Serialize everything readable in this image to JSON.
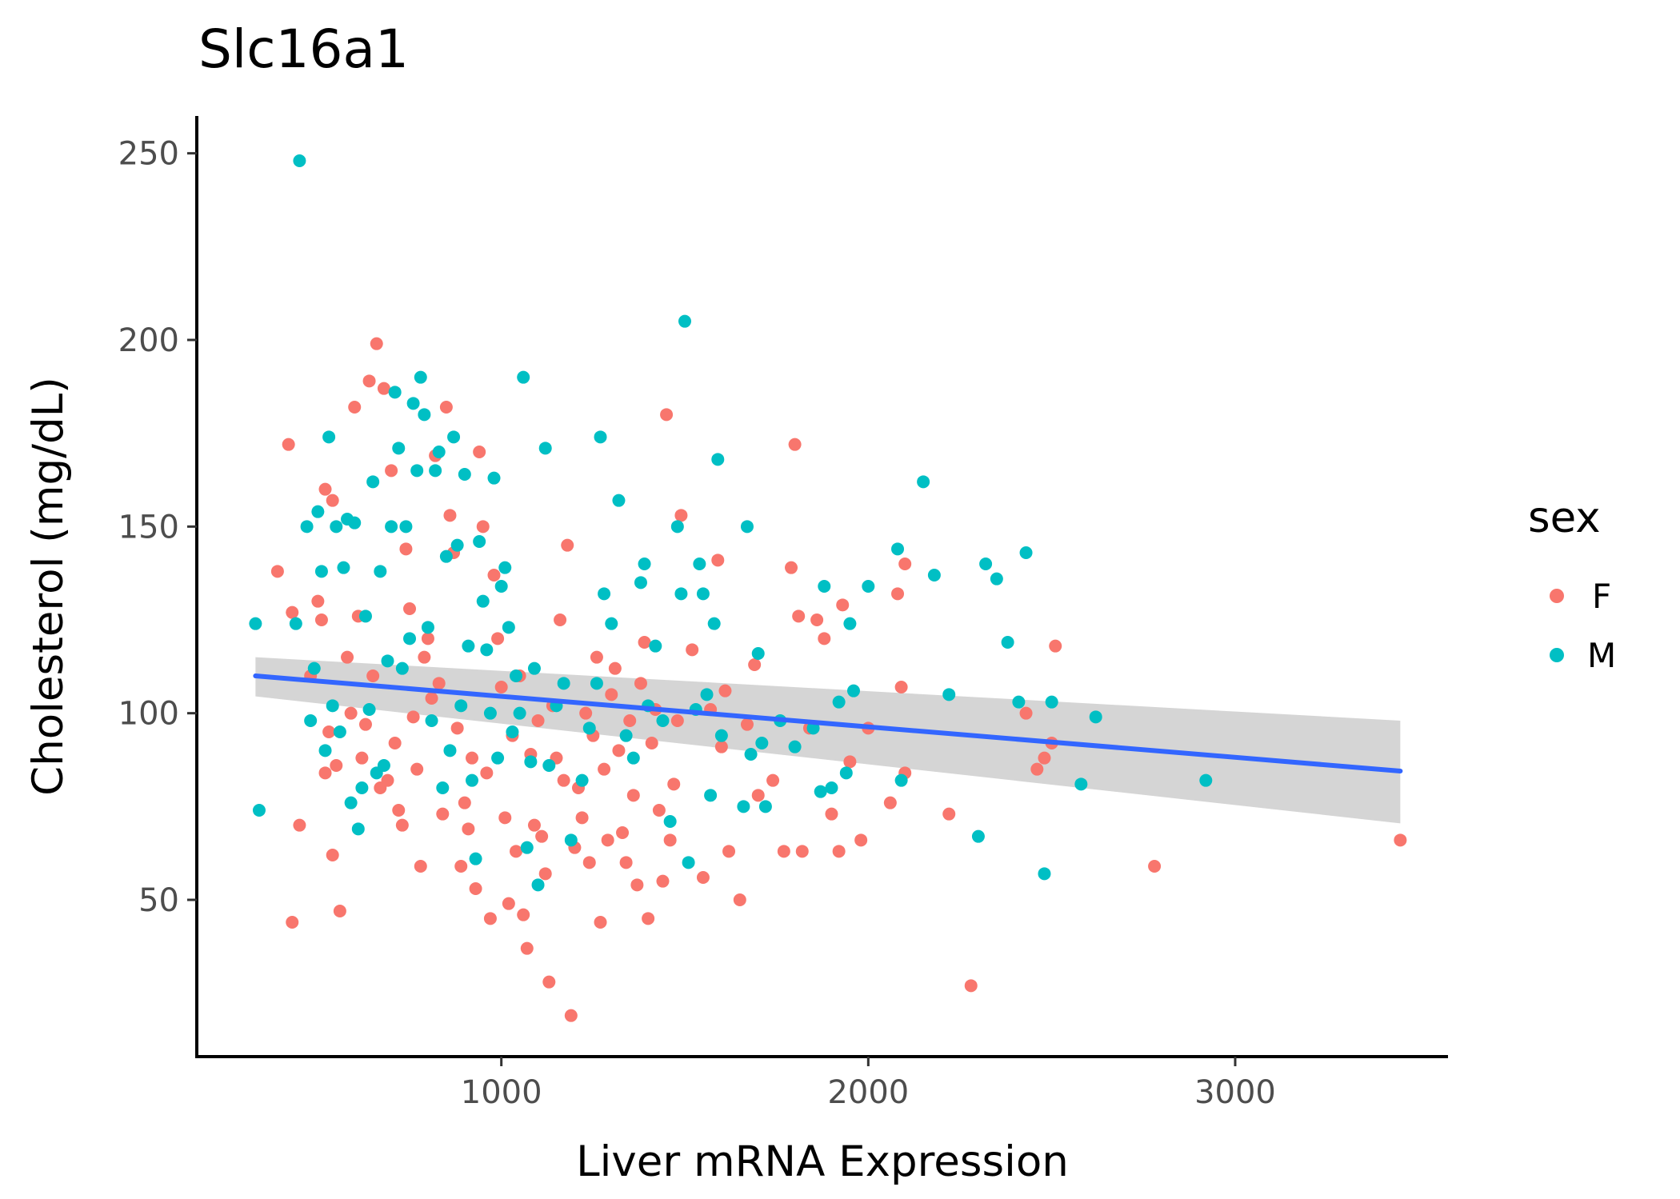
{
  "chart_data": {
    "type": "scatter",
    "title": "Slc16a1",
    "xlabel": "Liver mRNA Expression",
    "ylabel": "Cholesterol (mg/dL)",
    "xlim": [
      170,
      3580
    ],
    "ylim": [
      8,
      260
    ],
    "x_ticks": [
      1000,
      2000,
      3000
    ],
    "y_ticks": [
      50,
      100,
      150,
      200,
      250
    ],
    "grid": false,
    "legend": {
      "title": "sex",
      "position": "right"
    },
    "series": [
      {
        "name": "F",
        "color": "#F8766D",
        "points": [
          [
            420,
            172
          ],
          [
            390,
            138
          ],
          [
            430,
            127
          ],
          [
            430,
            44
          ],
          [
            450,
            70
          ],
          [
            480,
            110
          ],
          [
            500,
            130
          ],
          [
            510,
            125
          ],
          [
            520,
            160
          ],
          [
            530,
            95
          ],
          [
            520,
            84
          ],
          [
            540,
            157
          ],
          [
            550,
            86
          ],
          [
            540,
            62
          ],
          [
            560,
            47
          ],
          [
            580,
            115
          ],
          [
            590,
            100
          ],
          [
            600,
            182
          ],
          [
            610,
            126
          ],
          [
            620,
            88
          ],
          [
            630,
            97
          ],
          [
            640,
            189
          ],
          [
            650,
            110
          ],
          [
            660,
            199
          ],
          [
            670,
            80
          ],
          [
            680,
            187
          ],
          [
            690,
            82
          ],
          [
            700,
            165
          ],
          [
            710,
            92
          ],
          [
            720,
            74
          ],
          [
            730,
            70
          ],
          [
            740,
            144
          ],
          [
            750,
            128
          ],
          [
            760,
            99
          ],
          [
            770,
            85
          ],
          [
            780,
            59
          ],
          [
            790,
            115
          ],
          [
            800,
            120
          ],
          [
            810,
            104
          ],
          [
            820,
            169
          ],
          [
            830,
            108
          ],
          [
            840,
            73
          ],
          [
            850,
            182
          ],
          [
            860,
            153
          ],
          [
            870,
            143
          ],
          [
            880,
            96
          ],
          [
            890,
            59
          ],
          [
            900,
            76
          ],
          [
            910,
            69
          ],
          [
            920,
            88
          ],
          [
            930,
            53
          ],
          [
            940,
            170
          ],
          [
            950,
            150
          ],
          [
            960,
            84
          ],
          [
            970,
            45
          ],
          [
            980,
            137
          ],
          [
            990,
            120
          ],
          [
            1000,
            107
          ],
          [
            1010,
            72
          ],
          [
            1020,
            49
          ],
          [
            1030,
            94
          ],
          [
            1040,
            63
          ],
          [
            1050,
            110
          ],
          [
            1060,
            46
          ],
          [
            1070,
            37
          ],
          [
            1080,
            89
          ],
          [
            1090,
            70
          ],
          [
            1100,
            98
          ],
          [
            1110,
            67
          ],
          [
            1120,
            57
          ],
          [
            1130,
            28
          ],
          [
            1140,
            102
          ],
          [
            1150,
            88
          ],
          [
            1160,
            125
          ],
          [
            1170,
            82
          ],
          [
            1180,
            145
          ],
          [
            1190,
            19
          ],
          [
            1200,
            64
          ],
          [
            1210,
            80
          ],
          [
            1220,
            72
          ],
          [
            1230,
            100
          ],
          [
            1240,
            60
          ],
          [
            1250,
            94
          ],
          [
            1260,
            115
          ],
          [
            1270,
            44
          ],
          [
            1280,
            85
          ],
          [
            1290,
            66
          ],
          [
            1300,
            105
          ],
          [
            1310,
            112
          ],
          [
            1320,
            90
          ],
          [
            1330,
            68
          ],
          [
            1340,
            60
          ],
          [
            1350,
            98
          ],
          [
            1360,
            78
          ],
          [
            1370,
            54
          ],
          [
            1380,
            108
          ],
          [
            1390,
            119
          ],
          [
            1400,
            45
          ],
          [
            1410,
            92
          ],
          [
            1420,
            101
          ],
          [
            1430,
            74
          ],
          [
            1440,
            55
          ],
          [
            1450,
            180
          ],
          [
            1460,
            66
          ],
          [
            1470,
            81
          ],
          [
            1480,
            98
          ],
          [
            1490,
            153
          ],
          [
            1520,
            117
          ],
          [
            1550,
            56
          ],
          [
            1570,
            101
          ],
          [
            1590,
            141
          ],
          [
            1600,
            91
          ],
          [
            1610,
            106
          ],
          [
            1620,
            63
          ],
          [
            1650,
            50
          ],
          [
            1670,
            97
          ],
          [
            1690,
            113
          ],
          [
            1700,
            78
          ],
          [
            1740,
            82
          ],
          [
            1770,
            63
          ],
          [
            1790,
            139
          ],
          [
            1800,
            172
          ],
          [
            1810,
            126
          ],
          [
            1820,
            63
          ],
          [
            1840,
            96
          ],
          [
            1860,
            125
          ],
          [
            1880,
            120
          ],
          [
            1900,
            73
          ],
          [
            1920,
            63
          ],
          [
            1930,
            129
          ],
          [
            1950,
            87
          ],
          [
            1980,
            66
          ],
          [
            2000,
            96
          ],
          [
            2060,
            76
          ],
          [
            2080,
            132
          ],
          [
            2090,
            107
          ],
          [
            2100,
            140
          ],
          [
            2100,
            84
          ],
          [
            2220,
            73
          ],
          [
            2280,
            27
          ],
          [
            2430,
            100
          ],
          [
            2460,
            85
          ],
          [
            2480,
            88
          ],
          [
            2500,
            92
          ],
          [
            2510,
            118
          ],
          [
            2780,
            59
          ],
          [
            3450,
            66
          ]
        ]
      },
      {
        "name": "M",
        "color": "#00BFC4",
        "points": [
          [
            330,
            124
          ],
          [
            340,
            74
          ],
          [
            440,
            124
          ],
          [
            450,
            248
          ],
          [
            470,
            150
          ],
          [
            480,
            98
          ],
          [
            490,
            112
          ],
          [
            500,
            154
          ],
          [
            510,
            138
          ],
          [
            520,
            90
          ],
          [
            530,
            174
          ],
          [
            540,
            102
          ],
          [
            550,
            150
          ],
          [
            560,
            95
          ],
          [
            570,
            139
          ],
          [
            580,
            152
          ],
          [
            590,
            76
          ],
          [
            600,
            151
          ],
          [
            610,
            69
          ],
          [
            620,
            80
          ],
          [
            630,
            126
          ],
          [
            640,
            101
          ],
          [
            650,
            162
          ],
          [
            660,
            84
          ],
          [
            670,
            138
          ],
          [
            680,
            86
          ],
          [
            690,
            114
          ],
          [
            700,
            150
          ],
          [
            710,
            186
          ],
          [
            720,
            171
          ],
          [
            730,
            112
          ],
          [
            740,
            150
          ],
          [
            750,
            120
          ],
          [
            760,
            183
          ],
          [
            770,
            165
          ],
          [
            780,
            190
          ],
          [
            790,
            180
          ],
          [
            800,
            123
          ],
          [
            810,
            98
          ],
          [
            820,
            165
          ],
          [
            830,
            170
          ],
          [
            840,
            80
          ],
          [
            850,
            142
          ],
          [
            860,
            90
          ],
          [
            870,
            174
          ],
          [
            880,
            145
          ],
          [
            890,
            102
          ],
          [
            900,
            164
          ],
          [
            910,
            118
          ],
          [
            920,
            82
          ],
          [
            930,
            61
          ],
          [
            940,
            146
          ],
          [
            950,
            130
          ],
          [
            960,
            117
          ],
          [
            970,
            100
          ],
          [
            980,
            163
          ],
          [
            990,
            88
          ],
          [
            1000,
            134
          ],
          [
            1010,
            139
          ],
          [
            1020,
            123
          ],
          [
            1030,
            95
          ],
          [
            1040,
            110
          ],
          [
            1050,
            100
          ],
          [
            1060,
            190
          ],
          [
            1070,
            64
          ],
          [
            1080,
            87
          ],
          [
            1090,
            112
          ],
          [
            1100,
            54
          ],
          [
            1120,
            171
          ],
          [
            1130,
            86
          ],
          [
            1150,
            102
          ],
          [
            1170,
            108
          ],
          [
            1190,
            66
          ],
          [
            1220,
            82
          ],
          [
            1240,
            96
          ],
          [
            1260,
            108
          ],
          [
            1270,
            174
          ],
          [
            1280,
            132
          ],
          [
            1300,
            124
          ],
          [
            1320,
            157
          ],
          [
            1340,
            94
          ],
          [
            1360,
            88
          ],
          [
            1380,
            135
          ],
          [
            1390,
            140
          ],
          [
            1400,
            102
          ],
          [
            1420,
            118
          ],
          [
            1440,
            98
          ],
          [
            1460,
            71
          ],
          [
            1480,
            150
          ],
          [
            1490,
            132
          ],
          [
            1500,
            205
          ],
          [
            1510,
            60
          ],
          [
            1530,
            101
          ],
          [
            1540,
            140
          ],
          [
            1550,
            132
          ],
          [
            1560,
            105
          ],
          [
            1570,
            78
          ],
          [
            1580,
            124
          ],
          [
            1590,
            168
          ],
          [
            1600,
            94
          ],
          [
            1660,
            75
          ],
          [
            1670,
            150
          ],
          [
            1680,
            89
          ],
          [
            1700,
            116
          ],
          [
            1710,
            92
          ],
          [
            1720,
            75
          ],
          [
            1760,
            98
          ],
          [
            1800,
            91
          ],
          [
            1850,
            96
          ],
          [
            1870,
            79
          ],
          [
            1880,
            134
          ],
          [
            1900,
            80
          ],
          [
            1920,
            103
          ],
          [
            1940,
            84
          ],
          [
            1950,
            124
          ],
          [
            1960,
            106
          ],
          [
            2000,
            134
          ],
          [
            2080,
            144
          ],
          [
            2090,
            82
          ],
          [
            2150,
            162
          ],
          [
            2180,
            137
          ],
          [
            2220,
            105
          ],
          [
            2300,
            67
          ],
          [
            2320,
            140
          ],
          [
            2350,
            136
          ],
          [
            2380,
            119
          ],
          [
            2410,
            103
          ],
          [
            2430,
            143
          ],
          [
            2480,
            57
          ],
          [
            2500,
            103
          ],
          [
            2580,
            81
          ],
          [
            2620,
            99
          ],
          [
            2920,
            82
          ]
        ]
      }
    ],
    "trend_line": {
      "color": "#3366FF",
      "points": [
        [
          330,
          110
        ],
        [
          3450,
          84.5
        ]
      ],
      "band_color": "#d3d3d3",
      "band_upper": [
        [
          330,
          115
        ],
        [
          3450,
          98
        ]
      ],
      "band_lower": [
        [
          330,
          104.5
        ],
        [
          3450,
          70.5
        ]
      ]
    }
  }
}
